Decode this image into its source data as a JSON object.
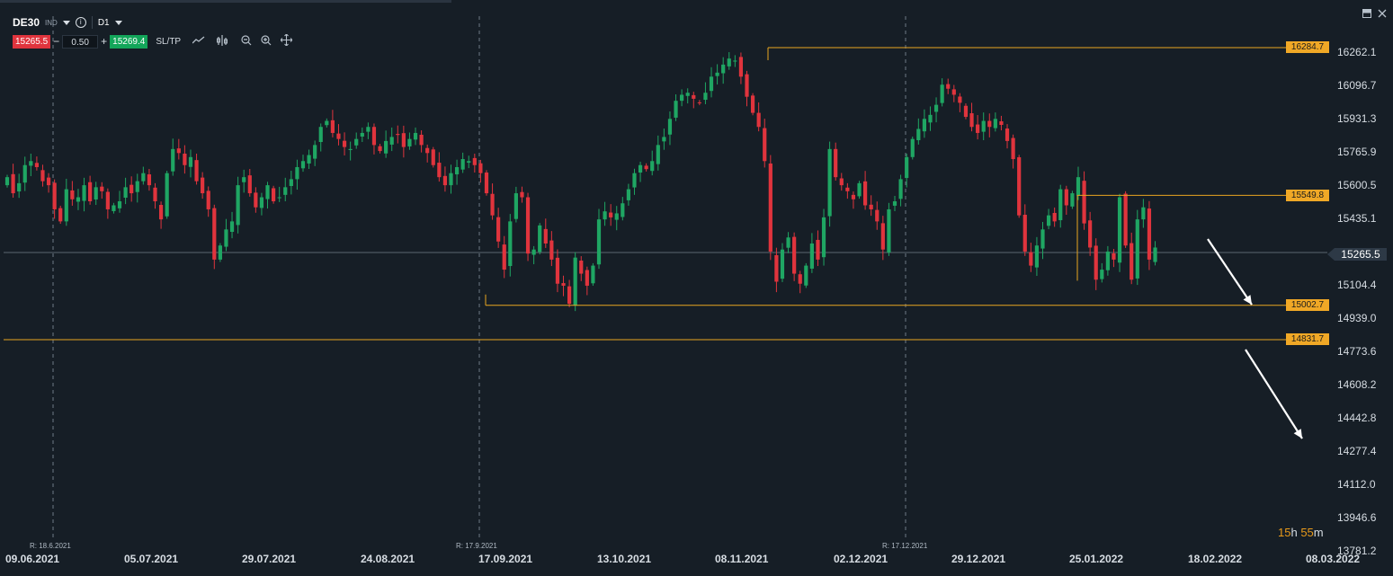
{
  "instrument": {
    "symbol": "DE30",
    "type": "IND",
    "timeframe": "D1",
    "sell_price": "15265.5",
    "lot_size": "0.50",
    "buy_price": "15269.4",
    "sltp_label": "SL/TP",
    "minus": "−",
    "plus": "+"
  },
  "countdown": {
    "hours": "15",
    "h": "h",
    "minutes": "55",
    "m": "m"
  },
  "current_price": "15265.5",
  "colors": {
    "up": "#1fa663",
    "down": "#e0343d",
    "level": "#e8a520",
    "background": "#161e26",
    "grid": "#6f7a86"
  },
  "chart_data": {
    "type": "candlestick",
    "y_ticks": [
      "16262.1",
      "16096.7",
      "15931.3",
      "15765.9",
      "15600.5",
      "15435.1",
      "15265.5",
      "15104.4",
      "14939.0",
      "14773.6",
      "14608.2",
      "14442.8",
      "14277.4",
      "14112.0",
      "13946.6",
      "13781.2"
    ],
    "y_tick_values": [
      16262.1,
      16096.7,
      15931.3,
      15765.9,
      15600.5,
      15435.1,
      15265.5,
      15104.4,
      14939.0,
      14773.6,
      14608.2,
      14442.8,
      14277.4,
      14112.0,
      13946.6,
      13781.2
    ],
    "x_ticks": [
      "09.06.2021",
      "05.07.2021",
      "29.07.2021",
      "24.08.2021",
      "17.09.2021",
      "13.10.2021",
      "08.11.2021",
      "02.12.2021",
      "29.12.2021",
      "25.01.2022",
      "18.02.2022",
      "08.03.2022"
    ],
    "rollovers": [
      "R: 18.6.2021",
      "R: 17.9.2021",
      "R: 17.12.2021"
    ],
    "levels": [
      {
        "label": "16284.7",
        "value": 16284.7
      },
      {
        "label": "15549.8",
        "value": 15549.8
      },
      {
        "label": "15002.7",
        "value": 15002.7
      },
      {
        "label": "14831.7",
        "value": 14831.7
      }
    ],
    "current": 15265.5,
    "closes": [
      15640,
      15560,
      15610,
      15700,
      15720,
      15690,
      15620,
      15600,
      15480,
      15420,
      15580,
      15530,
      15540,
      15600,
      15520,
      15590,
      15570,
      15480,
      15500,
      15520,
      15590,
      15560,
      15620,
      15660,
      15600,
      15520,
      15430,
      15660,
      15780,
      15760,
      15700,
      15740,
      15620,
      15560,
      15480,
      15230,
      15300,
      15380,
      15420,
      15600,
      15640,
      15560,
      15490,
      15540,
      15600,
      15520,
      15540,
      15590,
      15630,
      15690,
      15720,
      15750,
      15800,
      15890,
      15920,
      15860,
      15830,
      15790,
      15780,
      15830,
      15860,
      15890,
      15800,
      15770,
      15820,
      15840,
      15850,
      15790,
      15830,
      15860,
      15800,
      15760,
      15700,
      15640,
      15600,
      15660,
      15690,
      15730,
      15720,
      15700,
      15660,
      15560,
      15450,
      15320,
      15180,
      15420,
      15560,
      15540,
      15260,
      15280,
      15400,
      15310,
      15230,
      15110,
      15100,
      15010,
      15240,
      15160,
      15100,
      15200,
      15430,
      15470,
      15440,
      15460,
      15510,
      15580,
      15660,
      15700,
      15680,
      15720,
      15800,
      15840,
      15930,
      16020,
      16050,
      16060,
      16030,
      16010,
      16060,
      16140,
      16160,
      16200,
      16230,
      16220,
      16140,
      16040,
      15960,
      15890,
      15720,
      15270,
      15120,
      15280,
      15340,
      15160,
      15110,
      15200,
      15310,
      15230,
      15440,
      15780,
      15640,
      15600,
      15570,
      15530,
      15610,
      15500,
      15480,
      15420,
      15280,
      15480,
      15520,
      15630,
      15740,
      15830,
      15880,
      15930,
      15950,
      16000,
      16100,
      16080,
      16050,
      16010,
      15940,
      15890,
      15860,
      15920,
      15890,
      15930,
      15900,
      15820,
      15730,
      15450,
      15270,
      15200,
      15300,
      15380,
      15450,
      15420,
      15580,
      15500,
      15560,
      15640,
      15410,
      15290,
      15130,
      15180,
      15270,
      15230,
      15540,
      15300,
      15130,
      15430,
      15490,
      15230,
      15290
    ]
  }
}
